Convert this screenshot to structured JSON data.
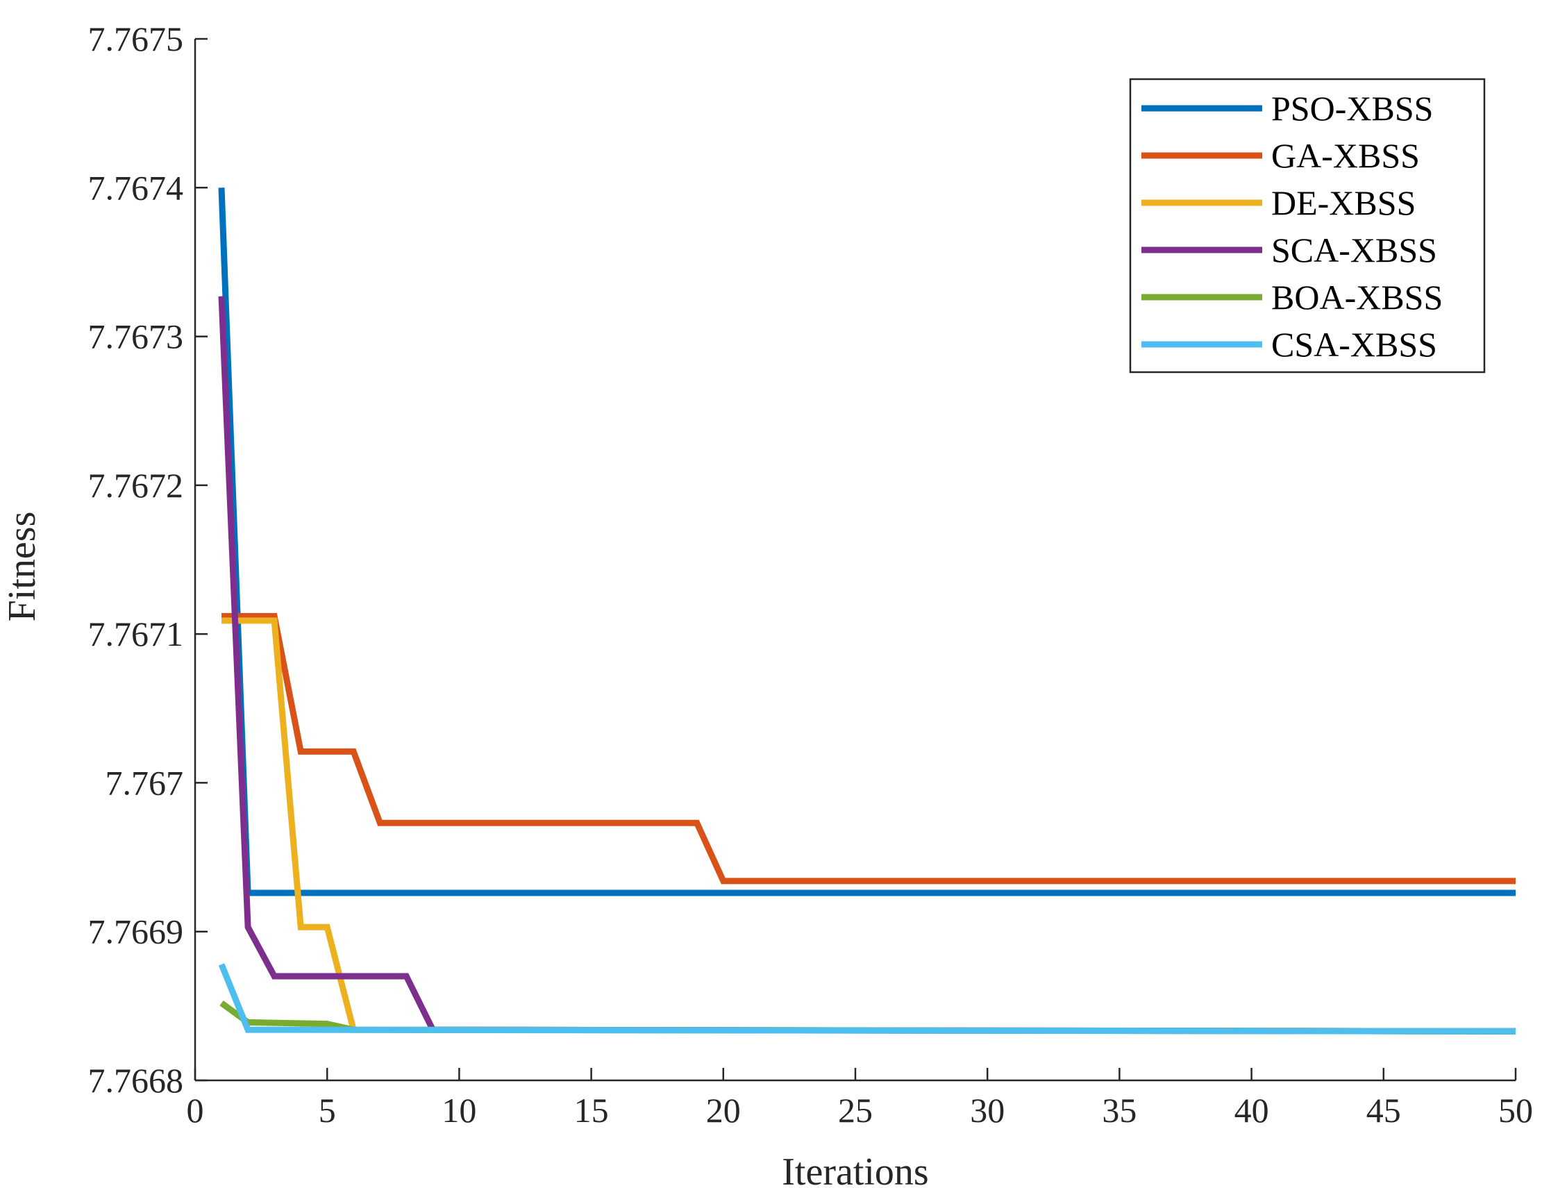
{
  "chart_data": {
    "type": "line",
    "title": "",
    "xlabel": "Iterations",
    "ylabel": "Fitness",
    "xlim": [
      0,
      50
    ],
    "ylim": [
      7.7668,
      7.7675
    ],
    "grid": false,
    "legend_position": "top-right",
    "x_ticks": [
      {
        "value": 0,
        "label": "0"
      },
      {
        "value": 5,
        "label": "5"
      },
      {
        "value": 10,
        "label": "10"
      },
      {
        "value": 15,
        "label": "15"
      },
      {
        "value": 20,
        "label": "20"
      },
      {
        "value": 25,
        "label": "25"
      },
      {
        "value": 30,
        "label": "30"
      },
      {
        "value": 35,
        "label": "35"
      },
      {
        "value": 40,
        "label": "40"
      },
      {
        "value": 45,
        "label": "45"
      },
      {
        "value": 50,
        "label": "50"
      }
    ],
    "y_ticks": [
      {
        "value": 7.7668,
        "label": "7.7668"
      },
      {
        "value": 7.7669,
        "label": "7.7669"
      },
      {
        "value": 7.767,
        "label": "7.767"
      },
      {
        "value": 7.7671,
        "label": "7.7671"
      },
      {
        "value": 7.7672,
        "label": "7.7672"
      },
      {
        "value": 7.7673,
        "label": "7.7673"
      },
      {
        "value": 7.7674,
        "label": "7.7674"
      },
      {
        "value": 7.7675,
        "label": "7.7675"
      }
    ],
    "series": [
      {
        "name": "PSO-XBSS",
        "color": "#0072BD",
        "points": [
          [
            1,
            7.7674
          ],
          [
            2,
            7.766926
          ],
          [
            50,
            7.766926
          ]
        ]
      },
      {
        "name": "GA-XBSS",
        "color": "#D95319",
        "points": [
          [
            1,
            7.767112
          ],
          [
            3,
            7.767112
          ],
          [
            4,
            7.767021
          ],
          [
            6,
            7.767021
          ],
          [
            7,
            7.766973
          ],
          [
            19,
            7.766973
          ],
          [
            20,
            7.766934
          ],
          [
            50,
            7.766934
          ]
        ]
      },
      {
        "name": "DE-XBSS",
        "color": "#EDB120",
        "points": [
          [
            1,
            7.767109
          ],
          [
            3,
            7.767109
          ],
          [
            4,
            7.766903
          ],
          [
            5,
            7.766903
          ],
          [
            6,
            7.766834
          ],
          [
            50,
            7.766833
          ]
        ]
      },
      {
        "name": "SCA-XBSS",
        "color": "#7E2F8E",
        "points": [
          [
            1,
            7.767327
          ],
          [
            2,
            7.766903
          ],
          [
            3,
            7.76687
          ],
          [
            8,
            7.76687
          ],
          [
            9,
            7.766834
          ],
          [
            50,
            7.766833
          ]
        ]
      },
      {
        "name": "BOA-XBSS",
        "color": "#77AC30",
        "points": [
          [
            1,
            7.766852
          ],
          [
            2,
            7.766839
          ],
          [
            5,
            7.766838
          ],
          [
            6,
            7.766834
          ],
          [
            50,
            7.766833
          ]
        ]
      },
      {
        "name": "CSA-XBSS",
        "color": "#4DBEEE",
        "points": [
          [
            1,
            7.766878
          ],
          [
            2,
            7.766834
          ],
          [
            50,
            7.766833
          ]
        ]
      }
    ]
  }
}
